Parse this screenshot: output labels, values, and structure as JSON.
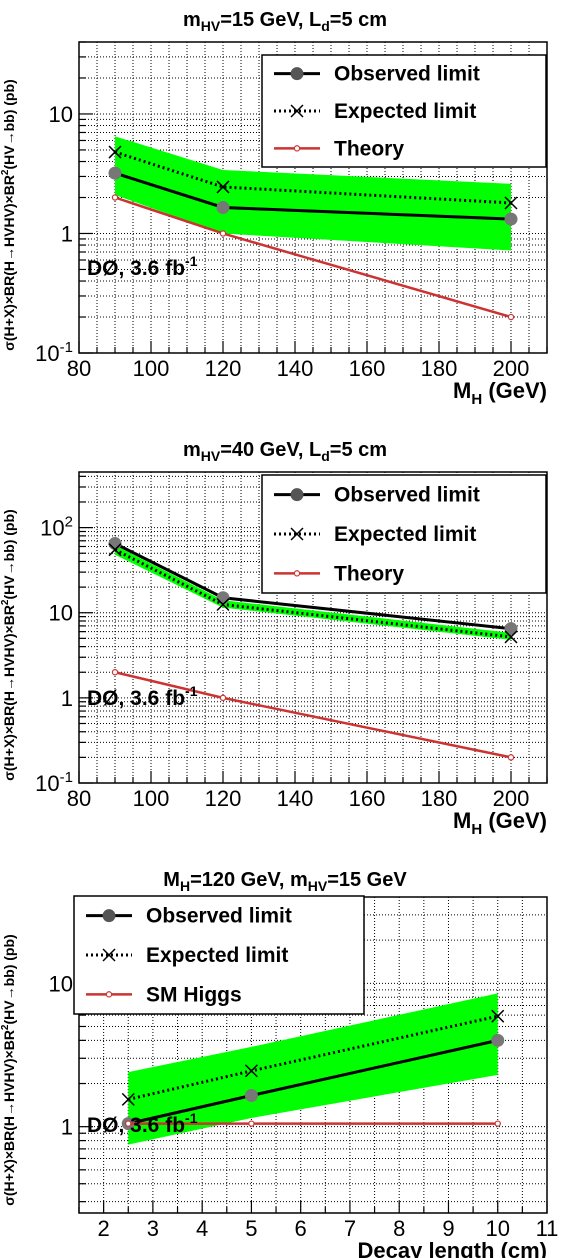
{
  "chart_data": [
    {
      "type": "line",
      "title": "m_HV=15 GeV, L_d=5 cm",
      "title_parts": {
        "a": "m",
        "a_sub": "HV",
        "b": "=15 GeV, L",
        "b_sub": "d",
        "c": "=5 cm"
      },
      "ylabel": "σ(H+X)×BR(H→HVHV)×BR²(HV→bb) (pb)",
      "xlabel": "M_H (GeV)",
      "xlabel_parts": {
        "main": "M",
        "sub": "H",
        "rest": " (GeV)"
      },
      "x_ticks": [
        80,
        100,
        120,
        140,
        160,
        180,
        200
      ],
      "xlim": [
        80,
        210
      ],
      "ylim": [
        0.1,
        40
      ],
      "y_log": true,
      "y_ticks": [
        "10^-1",
        "1",
        "10"
      ],
      "grid": true,
      "legend_position": "top-right",
      "annotation": "DØ, 3.6 fb^-1",
      "x": [
        90,
        120,
        200
      ],
      "band": {
        "low": [
          2.1,
          1.0,
          0.72
        ],
        "high": [
          6.5,
          3.4,
          2.6
        ],
        "color": "#00ff00"
      },
      "series": [
        {
          "name": "Observed limit",
          "style": "observed",
          "values": [
            3.2,
            1.65,
            1.32
          ],
          "color": "#000000"
        },
        {
          "name": "Expected limit",
          "style": "expected",
          "values": [
            4.8,
            2.45,
            1.8
          ],
          "color": "#000000"
        },
        {
          "name": "Theory",
          "style": "theory",
          "values": [
            2.0,
            1.0,
            0.2
          ],
          "color": "#cc3333"
        }
      ]
    },
    {
      "type": "line",
      "title": "m_HV=40 GeV, L_d=5 cm",
      "title_parts": {
        "a": "m",
        "a_sub": "HV",
        "b": "=40 GeV, L",
        "b_sub": "d",
        "c": "=5 cm"
      },
      "ylabel": "σ(H+X)×BR(H→HVHV)×BR²(HV→bb) (pb)",
      "xlabel": "M_H (GeV)",
      "xlabel_parts": {
        "main": "M",
        "sub": "H",
        "rest": " (GeV)"
      },
      "x_ticks": [
        80,
        100,
        120,
        140,
        160,
        180,
        200
      ],
      "xlim": [
        80,
        210
      ],
      "ylim": [
        0.1,
        450
      ],
      "y_log": true,
      "y_ticks": [
        "10^-1",
        "1",
        "10",
        "10^2"
      ],
      "grid": true,
      "legend_position": "top-right",
      "annotation": "DØ, 3.6 fb^-1",
      "x": [
        90,
        120,
        200
      ],
      "band": {
        "low": [
          48,
          11.5,
          4.8
        ],
        "high": [
          62,
          14,
          5.8
        ],
        "color": "#00ff00"
      },
      "series": [
        {
          "name": "Observed limit",
          "style": "observed",
          "values": [
            65,
            15,
            6.5
          ],
          "color": "#000000"
        },
        {
          "name": "Expected limit",
          "style": "expected",
          "values": [
            55,
            12.5,
            5.2
          ],
          "color": "#000000"
        },
        {
          "name": "Theory",
          "style": "theory",
          "values": [
            2.0,
            1.0,
            0.2
          ],
          "color": "#cc3333"
        }
      ]
    },
    {
      "type": "line",
      "title": "M_H=120 GeV, m_HV=15 GeV",
      "title_parts": {
        "a": "M",
        "a_sub": "H",
        "b": "=120 GeV, m",
        "b_sub": "HV",
        "c": "=15 GeV"
      },
      "ylabel": "σ(H+X)×BR(H→HVHV)×BR²(HV→bb) (pb)",
      "xlabel": "Decay length (cm)",
      "xlabel_parts": {
        "main": "Decay length (cm)",
        "sub": "",
        "rest": ""
      },
      "x_ticks": [
        2,
        3,
        4,
        5,
        6,
        7,
        8,
        9,
        10,
        11
      ],
      "xlim": [
        1.5,
        11
      ],
      "ylim": [
        0.25,
        40
      ],
      "y_log": true,
      "y_ticks": [
        "1",
        "10"
      ],
      "grid": true,
      "legend_position": "top-left",
      "annotation": "DØ, 3.6 fb^-1",
      "x": [
        2.5,
        5,
        10
      ],
      "band": {
        "low": [
          0.75,
          1.15,
          2.3
        ],
        "high": [
          2.4,
          3.6,
          8.5
        ],
        "color": "#00ff00"
      },
      "series": [
        {
          "name": "Observed limit",
          "style": "observed",
          "values": [
            1.05,
            1.65,
            4.0
          ],
          "color": "#000000"
        },
        {
          "name": "Expected limit",
          "style": "expected",
          "values": [
            1.55,
            2.45,
            5.9
          ],
          "color": "#000000"
        },
        {
          "name": "SM Higgs",
          "style": "theory",
          "values": [
            1.05,
            1.05,
            1.05
          ],
          "color": "#cc3333"
        }
      ]
    }
  ]
}
